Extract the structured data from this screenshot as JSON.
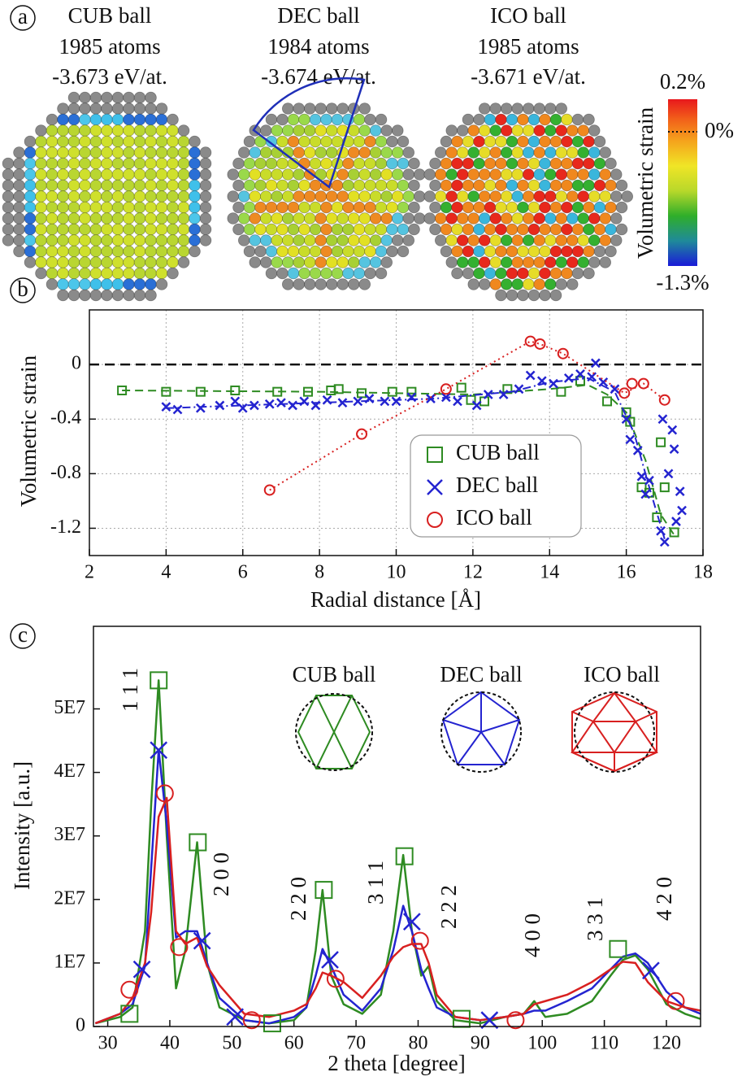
{
  "panel_a": {
    "label": "a",
    "balls": [
      {
        "name": "CUB ball",
        "atoms": "1985 atoms",
        "energy": "-3.673 eV/at."
      },
      {
        "name": "DEC ball",
        "atoms": "1984 atoms",
        "energy": "-3.674 eV/at."
      },
      {
        "name": "ICO ball",
        "atoms": "1985 atoms",
        "energy": "-3.671 eV/at."
      }
    ],
    "colorbar": {
      "title": "Volumetric strain",
      "top": "0.2%",
      "middle": "0%",
      "bottom": "-1.3%"
    }
  },
  "chart_data": [
    {
      "type": "scatter",
      "panel_label": "b",
      "xlabel": "Radial distance [Å]",
      "ylabel": "Volumetric strain",
      "xlim": [
        2,
        18
      ],
      "ylim": [
        -1.4,
        0.4
      ],
      "xticks": [
        2,
        4,
        6,
        8,
        10,
        12,
        14,
        16,
        18
      ],
      "yticks": [
        0,
        -0.4,
        -0.8,
        -1.2
      ],
      "grid": true,
      "reference_line": 0,
      "legend": "lower right",
      "series": [
        {
          "name": "CUB ball",
          "color": "#2e8b22",
          "marker": "square",
          "dash": "dashed",
          "x": [
            2.85,
            4.0,
            4.9,
            5.8,
            6.9,
            7.7,
            8.3,
            8.5,
            9.1,
            9.9,
            10.4,
            11.7,
            11.95,
            12.3,
            12.9,
            14.3,
            14.8,
            15.5,
            16.0,
            16.1,
            16.4,
            16.6,
            16.8,
            16.9,
            17.0,
            17.25
          ],
          "values": [
            -0.19,
            -0.2,
            -0.2,
            -0.19,
            -0.2,
            -0.2,
            -0.19,
            -0.18,
            -0.21,
            -0.2,
            -0.2,
            -0.17,
            -0.26,
            -0.27,
            -0.18,
            -0.2,
            -0.12,
            -0.27,
            -0.35,
            -0.42,
            -0.9,
            -0.94,
            -1.12,
            -0.57,
            -0.9,
            -1.23
          ],
          "fit_x": [
            2.85,
            8,
            12,
            14,
            15,
            15.5,
            16,
            16.5,
            16.9,
            17.25
          ],
          "fit_values": [
            -0.19,
            -0.2,
            -0.22,
            -0.18,
            -0.15,
            -0.22,
            -0.35,
            -0.7,
            -1.1,
            -1.25
          ]
        },
        {
          "name": "DEC ball",
          "color": "#2424d0",
          "marker": "x",
          "dash": "dashdot",
          "x": [
            4.0,
            4.3,
            4.9,
            5.4,
            5.8,
            6.0,
            6.3,
            6.7,
            7.0,
            7.3,
            7.6,
            7.9,
            8.2,
            8.6,
            9.0,
            9.3,
            9.7,
            10.0,
            10.4,
            10.9,
            11.3,
            11.6,
            12.1,
            12.4,
            12.8,
            13.2,
            13.5,
            13.8,
            14.1,
            14.5,
            14.8,
            15.1,
            15.2,
            15.4,
            15.7,
            16.0,
            16.1,
            16.3,
            16.4,
            16.5,
            16.6,
            16.9,
            16.95,
            17.0,
            17.1,
            17.2,
            17.25,
            17.3,
            17.4,
            17.45
          ],
          "values": [
            -0.31,
            -0.33,
            -0.32,
            -0.3,
            -0.27,
            -0.32,
            -0.3,
            -0.29,
            -0.28,
            -0.3,
            -0.27,
            -0.3,
            -0.26,
            -0.28,
            -0.27,
            -0.25,
            -0.27,
            -0.27,
            -0.24,
            -0.25,
            -0.24,
            -0.27,
            -0.3,
            -0.22,
            -0.22,
            -0.18,
            -0.08,
            -0.12,
            -0.14,
            -0.1,
            -0.07,
            -0.09,
            0.01,
            -0.13,
            -0.18,
            -0.4,
            -0.55,
            -0.63,
            -0.82,
            -0.95,
            -0.85,
            -1.22,
            -0.4,
            -1.3,
            -0.8,
            -0.48,
            -0.62,
            -1.15,
            -0.93,
            -1.07
          ],
          "fit_x": [
            4,
            8,
            11,
            13,
            14,
            15,
            15.7,
            16.2,
            16.6,
            17.0
          ],
          "fit_values": [
            -0.32,
            -0.28,
            -0.25,
            -0.2,
            -0.13,
            -0.1,
            -0.2,
            -0.5,
            -0.9,
            -1.28
          ]
        },
        {
          "name": "ICO ball",
          "color": "#d82020",
          "marker": "circle",
          "dash": "dotted",
          "x": [
            6.7,
            9.1,
            11.3,
            13.5,
            13.75,
            14.35,
            15.95,
            16.15,
            16.45,
            17.0
          ],
          "values": [
            -0.92,
            -0.51,
            -0.18,
            0.17,
            0.15,
            0.08,
            -0.21,
            -0.14,
            -0.14,
            -0.26
          ],
          "fit_x": [
            6.7,
            9.1,
            11.3,
            13.5,
            13.75,
            14.35,
            15.95,
            16.45,
            17.0
          ],
          "fit_values": [
            -0.92,
            -0.51,
            -0.18,
            0.17,
            0.15,
            0.08,
            -0.21,
            -0.14,
            -0.26
          ]
        }
      ]
    },
    {
      "type": "line",
      "panel_label": "c",
      "xlabel": "2 theta [degree]",
      "ylabel": "Intensity [a.u.]",
      "xlim": [
        27.7,
        125.5
      ],
      "ylim": [
        0,
        63000000.0
      ],
      "xticks": [
        30,
        40,
        50,
        60,
        70,
        80,
        90,
        100,
        110,
        120
      ],
      "yticks": [
        0,
        {
          "value": 10000000.0,
          "label": "1E7"
        },
        {
          "value": 20000000.0,
          "label": "2E7"
        },
        {
          "value": 30000000.0,
          "label": "3E7"
        },
        {
          "value": 40000000.0,
          "label": "4E7"
        },
        {
          "value": 50000000.0,
          "label": "5E7"
        }
      ],
      "annotations": [
        "1 1 1",
        "2 0 0",
        "2 2 0",
        "3 1 1",
        "2 2 2",
        "4 0 0",
        "3 3 1",
        "4 2 0"
      ],
      "x": [
        28,
        32,
        34,
        36,
        37,
        38.2,
        39.5,
        41,
        42.5,
        44.4,
        46,
        48,
        52,
        56,
        60,
        62,
        63.5,
        64.6,
        66,
        68,
        71,
        74,
        76,
        77.6,
        79,
        80.5,
        81.7,
        83,
        86,
        90,
        94,
        97,
        98.7,
        100.5,
        104,
        108,
        111,
        113,
        115,
        117,
        120,
        123,
        125.5
      ],
      "series": [
        {
          "name": "CUB ball",
          "color": "#2e8b22",
          "marker": "square",
          "values": [
            500000.0,
            1500000.0,
            3000000.0,
            15000000.0,
            35000000.0,
            54500000.0,
            30000000.0,
            6000000.0,
            12000000.0,
            29000000.0,
            10000000.0,
            3000000.0,
            1000000.0,
            500000.0,
            1000000.0,
            3000000.0,
            12000000.0,
            21500000.0,
            8000000.0,
            3500000.0,
            2000000.0,
            5000000.0,
            15000000.0,
            27000000.0,
            15000000.0,
            8000000.0,
            9500000.0,
            4000000.0,
            1000000.0,
            500000.0,
            1500000.0,
            2000000.0,
            4000000.0,
            1500000.0,
            2000000.0,
            4000000.0,
            8000000.0,
            10500000.0,
            11200000.0,
            9000000.0,
            3500000.0,
            2000000.0,
            1200000.0
          ],
          "marker_x": [
            33.5,
            38.2,
            44.5,
            56.5,
            64.8,
            77.8,
            87,
            112.2
          ],
          "marker_values": [
            2000000.0,
            54500000.0,
            29000000.0,
            500000.0,
            21500000.0,
            26800000.0,
            1200000.0,
            12200000.0
          ]
        },
        {
          "name": "DEC ball",
          "color": "#2424d0",
          "marker": "x",
          "values": [
            500000.0,
            2000000.0,
            3500000.0,
            9500000.0,
            25000000.0,
            43500000.0,
            32000000.0,
            14000000.0,
            15000000.0,
            15000000.0,
            10000000.0,
            4500000.0,
            1000000.0,
            500000.0,
            1500000.0,
            3000000.0,
            8000000.0,
            12200000.0,
            9500000.0,
            5000000.0,
            2500000.0,
            6000000.0,
            12000000.0,
            19000000.0,
            15000000.0,
            9000000.0,
            6000000.0,
            3000000.0,
            1500000.0,
            1000000.0,
            1500000.0,
            2000000.0,
            2500000.0,
            2500000.0,
            4000000.0,
            6000000.0,
            9000000.0,
            11000000.0,
            11500000.0,
            10000000.0,
            5500000.0,
            3000000.0,
            2000000.0
          ],
          "marker_x": [
            35.5,
            38.2,
            45.2,
            50.5,
            65.8,
            79,
            91.5,
            117.5
          ],
          "marker_values": [
            9000000.0,
            43500000.0,
            13500000.0,
            1500000.0,
            10500000.0,
            16500000.0,
            1000000.0,
            8800000.0
          ]
        },
        {
          "name": "ICO ball",
          "color": "#d82020",
          "marker": "circle",
          "values": [
            500000.0,
            2000000.0,
            4500000.0,
            10000000.0,
            18000000.0,
            33000000.0,
            36000000.0,
            15000000.0,
            13000000.0,
            14000000.0,
            9500000.0,
            6500000.0,
            2000000.0,
            1500000.0,
            2500000.0,
            3500000.0,
            6000000.0,
            8500000.0,
            8000000.0,
            7000000.0,
            4500000.0,
            8000000.0,
            11000000.0,
            12500000.0,
            13000000.0,
            13000000.0,
            10000000.0,
            5000000.0,
            1500000.0,
            1000000.0,
            1500000.0,
            2000000.0,
            3500000.0,
            4000000.0,
            5000000.0,
            7000000.0,
            9000000.0,
            10200000.0,
            10000000.0,
            7000000.0,
            4000000.0,
            3000000.0,
            2500000.0
          ],
          "marker_x": [
            33.5,
            39.2,
            41.5,
            53.2,
            66.7,
            80.3,
            95.7,
            121.5
          ],
          "marker_values": [
            5800000.0,
            36700000.0,
            12500000.0,
            1000000.0,
            7500000.0,
            13500000.0,
            1000000.0,
            4000000.0
          ]
        }
      ]
    }
  ]
}
